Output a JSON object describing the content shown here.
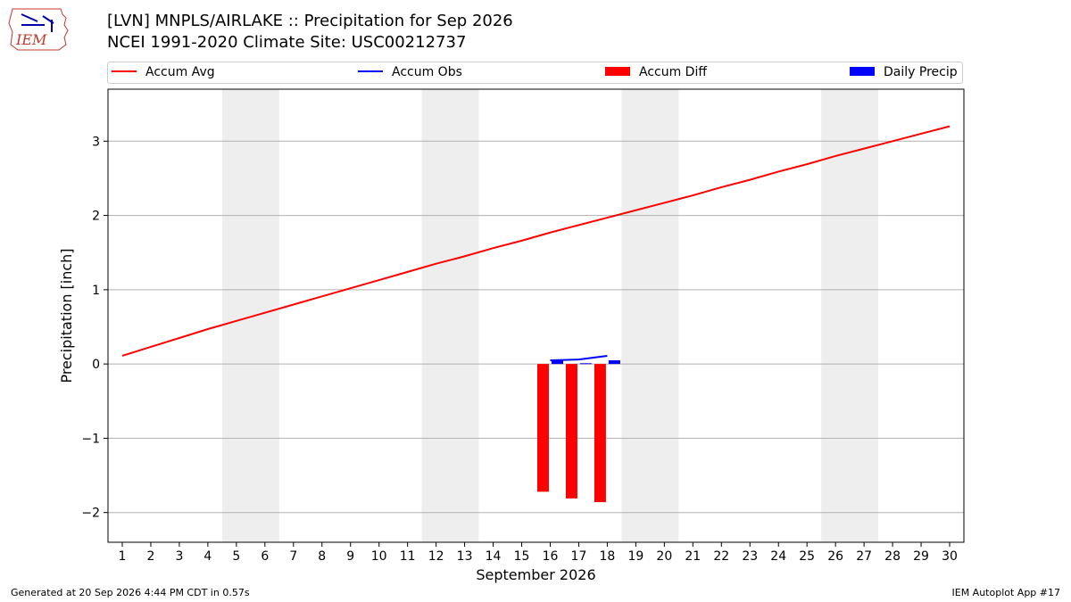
{
  "logo": {
    "text": "IEM",
    "icon": "iowa-state-outline-logo-icon"
  },
  "header": {
    "title": "[LVN] MNPLS/AIRLAKE :: Precipitation for Sep 2026",
    "subtitle": "NCEI 1991-2020 Climate Site: USC00212737"
  },
  "legend": {
    "items": [
      {
        "label": "Accum Avg",
        "kind": "line",
        "color": "#ff0000"
      },
      {
        "label": "Accum Obs",
        "kind": "line",
        "color": "#0000ff"
      },
      {
        "label": "Accum Diff",
        "kind": "patch",
        "color": "#ff0000"
      },
      {
        "label": "Daily Precip",
        "kind": "patch",
        "color": "#0000ff"
      }
    ]
  },
  "chart_data": {
    "type": "bar",
    "title": "[LVN] MNPLS/AIRLAKE :: Precipitation for Sep 2026",
    "xlabel": "September 2026",
    "ylabel": "Precipitation [inch]",
    "xlim": [
      0.5,
      30.5
    ],
    "ylim": [
      -2.4,
      3.7
    ],
    "x_ticks": [
      1,
      2,
      3,
      4,
      5,
      6,
      7,
      8,
      9,
      10,
      11,
      12,
      13,
      14,
      15,
      16,
      17,
      18,
      19,
      20,
      21,
      22,
      23,
      24,
      25,
      26,
      27,
      28,
      29,
      30
    ],
    "y_ticks": [
      -2,
      -1,
      0,
      1,
      2,
      3
    ],
    "y_tick_labels": [
      "−2",
      "−1",
      "0",
      "1",
      "2",
      "3"
    ],
    "grid": "horizontal",
    "weekend_shading": [
      [
        5,
        6
      ],
      [
        12,
        13
      ],
      [
        19,
        20
      ],
      [
        26,
        27
      ]
    ],
    "shading_color": "#eeeeee",
    "series": [
      {
        "name": "Accum Avg",
        "kind": "line",
        "color": "#ff0000",
        "x": [
          1,
          2,
          3,
          4,
          5,
          6,
          7,
          8,
          9,
          10,
          11,
          12,
          13,
          14,
          15,
          16,
          17,
          18,
          19,
          20,
          21,
          22,
          23,
          24,
          25,
          26,
          27,
          28,
          29,
          30
        ],
        "values": [
          0.11,
          0.23,
          0.35,
          0.47,
          0.58,
          0.69,
          0.8,
          0.91,
          1.02,
          1.13,
          1.24,
          1.35,
          1.45,
          1.56,
          1.66,
          1.77,
          1.87,
          1.97,
          2.07,
          2.17,
          2.27,
          2.38,
          2.48,
          2.59,
          2.69,
          2.8,
          2.9,
          3.0,
          3.1,
          3.2
        ]
      },
      {
        "name": "Accum Obs",
        "kind": "line",
        "color": "#0000ff",
        "x": [
          16,
          17,
          18
        ],
        "values": [
          0.05,
          0.06,
          0.11
        ]
      },
      {
        "name": "Accum Diff",
        "kind": "bar",
        "color": "#ff0000",
        "x": [
          16,
          17,
          18
        ],
        "values": [
          -1.72,
          -1.81,
          -1.86
        ]
      },
      {
        "name": "Daily Precip",
        "kind": "bar",
        "color": "#0000ff",
        "x": [
          16,
          17,
          18
        ],
        "values": [
          0.05,
          0.01,
          0.05
        ]
      }
    ]
  },
  "footer": {
    "left": "Generated at 20 Sep 2026 4:44 PM CDT in 0.57s",
    "right": "IEM Autoplot App #17"
  }
}
